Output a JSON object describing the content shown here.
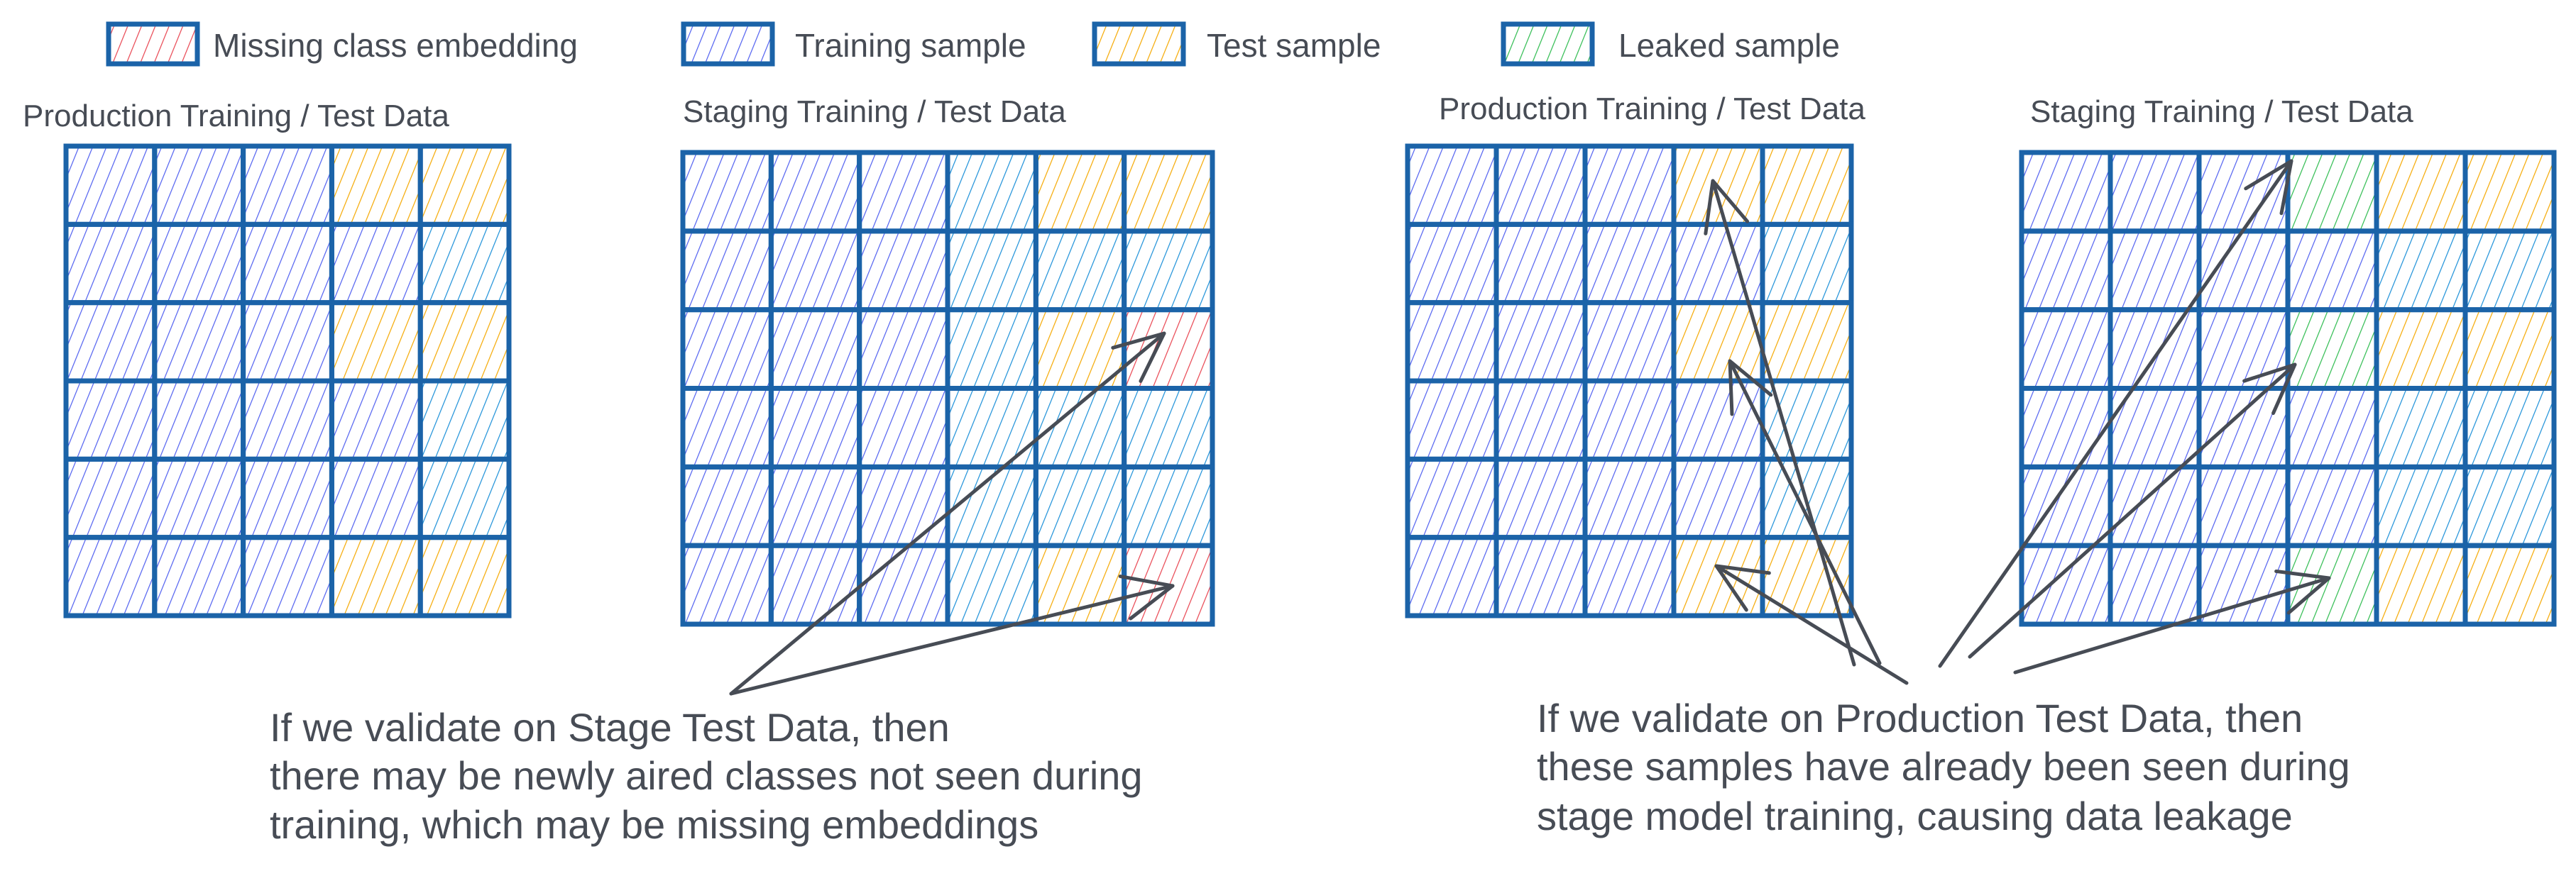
{
  "colors": {
    "border": "#1b63a8",
    "training": "#4f5ff0",
    "training_alt": "#1a8fd8",
    "test": "#f5a800",
    "missing": "#e8434f",
    "leaked": "#2dbb4e",
    "text": "#474c55"
  },
  "legend": [
    {
      "key": "R",
      "label": "Missing class embedding"
    },
    {
      "key": "I",
      "label": "Training sample"
    },
    {
      "key": "O",
      "label": "Test sample"
    },
    {
      "key": "G",
      "label": "Leaked sample"
    }
  ],
  "grids": [
    {
      "title": "Production Training / Test Data",
      "cells": [
        [
          "I",
          "I",
          "I",
          "O",
          "O"
        ],
        [
          "I",
          "I",
          "I",
          "I",
          "B"
        ],
        [
          "I",
          "I",
          "I",
          "O",
          "O"
        ],
        [
          "I",
          "I",
          "I",
          "I",
          "B"
        ],
        [
          "I",
          "I",
          "I",
          "I",
          "B"
        ],
        [
          "I",
          "I",
          "I",
          "O",
          "O"
        ]
      ]
    },
    {
      "title": "Staging Training / Test Data",
      "cells": [
        [
          "I",
          "I",
          "I",
          "B",
          "O",
          "O"
        ],
        [
          "I",
          "I",
          "I",
          "B",
          "B",
          "B"
        ],
        [
          "I",
          "I",
          "I",
          "B",
          "O",
          "R"
        ],
        [
          "I",
          "I",
          "I",
          "B",
          "B",
          "B"
        ],
        [
          "I",
          "I",
          "I",
          "B",
          "B",
          "B"
        ],
        [
          "I",
          "I",
          "I",
          "B",
          "O",
          "R"
        ]
      ]
    },
    {
      "title": "Production Training / Test Data",
      "cells": [
        [
          "I",
          "I",
          "I",
          "O",
          "O"
        ],
        [
          "I",
          "I",
          "I",
          "I",
          "B"
        ],
        [
          "I",
          "I",
          "I",
          "O",
          "O"
        ],
        [
          "I",
          "I",
          "I",
          "I",
          "B"
        ],
        [
          "I",
          "I",
          "I",
          "I",
          "B"
        ],
        [
          "I",
          "I",
          "I",
          "O",
          "O"
        ]
      ]
    },
    {
      "title": "Staging Training / Test Data",
      "cells": [
        [
          "I",
          "I",
          "I",
          "G",
          "O",
          "O"
        ],
        [
          "I",
          "I",
          "I",
          "I",
          "B",
          "B"
        ],
        [
          "I",
          "I",
          "I",
          "G",
          "O",
          "O"
        ],
        [
          "I",
          "I",
          "I",
          "I",
          "B",
          "B"
        ],
        [
          "I",
          "I",
          "I",
          "I",
          "B",
          "B"
        ],
        [
          "I",
          "I",
          "I",
          "G",
          "O",
          "O"
        ]
      ]
    }
  ],
  "notes": {
    "left": [
      "If we validate on Stage Test Data, then",
      "there may be newly aired classes not seen during",
      "training, which may be missing embeddings"
    ],
    "right": [
      "If we validate on Production Test Data, then",
      "these samples have already been seen during",
      "stage model training, causing data leakage"
    ]
  }
}
